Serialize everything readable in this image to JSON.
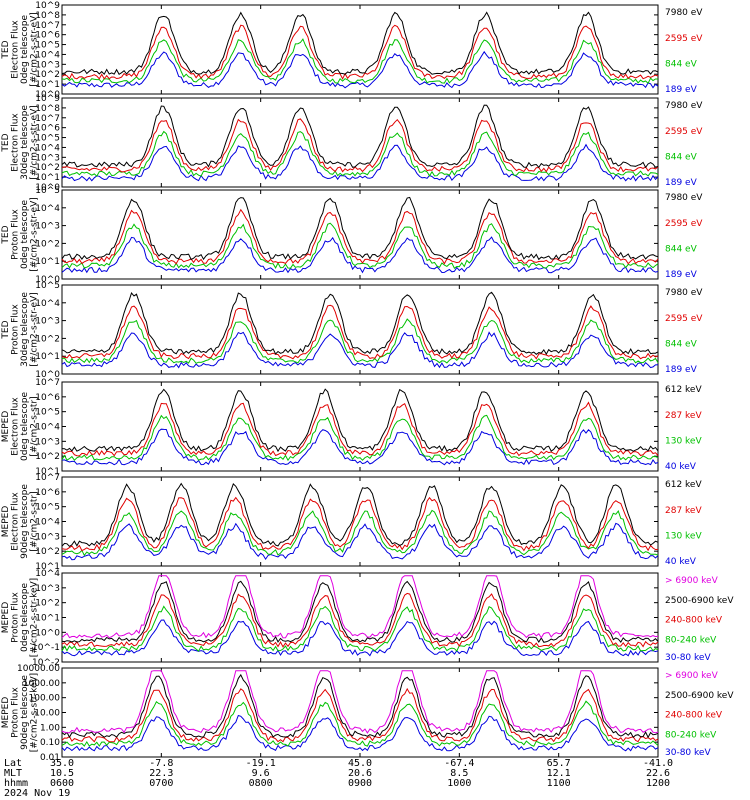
{
  "chart_data": {
    "type": "line",
    "date_label": "2024 Nov 19",
    "x_axis_rows": [
      {
        "label": "Lat",
        "values": [
          "35.0",
          "-7.8",
          "-19.1",
          "45.0",
          "-67.4",
          "65.7",
          "-41.0"
        ]
      },
      {
        "label": "MLT",
        "values": [
          "10.5",
          "22.3",
          "9.6",
          "20.6",
          "8.5",
          "12.1",
          "22.6"
        ]
      },
      {
        "label": "hhmm",
        "values": [
          "0600",
          "0700",
          "0800",
          "0900",
          "1000",
          "1100",
          "1200"
        ]
      }
    ],
    "panels": [
      {
        "id": "ted-electron-0",
        "ylabel": [
          "TED",
          "Electron Flux",
          "0deg telescope",
          "[#/cm2-s-str-eV]"
        ],
        "ylim": [
          1,
          1000000000
        ],
        "scale": "log",
        "yticks": [
          "10^0",
          "10^1",
          "10^2",
          "10^3",
          "10^4",
          "10^5",
          "10^6",
          "10^7",
          "10^8",
          "10^9"
        ],
        "legend": [
          "7980 eV",
          "2595 eV",
          "844 eV",
          "189 eV"
        ],
        "colors": [
          "#000000",
          "#e00000",
          "#00c000",
          "#0000e0"
        ],
        "bursts": [
          0.17,
          0.3,
          0.4,
          0.56,
          0.71,
          0.88
        ]
      },
      {
        "id": "ted-electron-30",
        "ylabel": [
          "TED",
          "Electron Flux",
          "30deg telescope",
          "[#/cm2-s-str-eV]"
        ],
        "ylim": [
          1,
          1000000000
        ],
        "scale": "log",
        "yticks": [
          "10^0",
          "10^1",
          "10^2",
          "10^3",
          "10^4",
          "10^5",
          "10^6",
          "10^7",
          "10^8",
          "10^9"
        ],
        "legend": [
          "7980 eV",
          "2595 eV",
          "844 eV",
          "189 eV"
        ],
        "colors": [
          "#000000",
          "#e00000",
          "#00c000",
          "#0000e0"
        ],
        "bursts": [
          0.17,
          0.3,
          0.4,
          0.56,
          0.71,
          0.88
        ]
      },
      {
        "id": "ted-proton-0",
        "ylabel": [
          "TED",
          "Proton Flux",
          "0deg telescope",
          "[#/cm2-s-str-eV]"
        ],
        "ylim": [
          1,
          100000
        ],
        "scale": "log",
        "yticks": [
          "10^0",
          "10^1",
          "10^2",
          "10^3",
          "10^4",
          "10^5"
        ],
        "legend": [
          "7980 eV",
          "2595 eV",
          "844 eV",
          "189 eV"
        ],
        "colors": [
          "#000000",
          "#e00000",
          "#00c000",
          "#0000e0"
        ],
        "bursts": [
          0.12,
          0.3,
          0.45,
          0.58,
          0.72,
          0.89
        ]
      },
      {
        "id": "ted-proton-30",
        "ylabel": [
          "TED",
          "Proton Flux",
          "30deg telescope",
          "[#/cm2-s-str-eV]"
        ],
        "ylim": [
          1,
          100000
        ],
        "scale": "log",
        "yticks": [
          "10^0",
          "10^1",
          "10^2",
          "10^3",
          "10^4",
          "10^5"
        ],
        "legend": [
          "7980 eV",
          "2595 eV",
          "844 eV",
          "189 eV"
        ],
        "colors": [
          "#000000",
          "#e00000",
          "#00c000",
          "#0000e0"
        ],
        "bursts": [
          0.12,
          0.3,
          0.45,
          0.58,
          0.72,
          0.89
        ]
      },
      {
        "id": "meped-electron-0",
        "ylabel": [
          "MEPED",
          "Electron Flux",
          "0deg telescope",
          "[#/cm2-s-str]"
        ],
        "ylim": [
          10,
          10000000
        ],
        "scale": "log",
        "yticks": [
          "10^1",
          "10^2",
          "10^3",
          "10^4",
          "10^5",
          "10^6",
          "10^7"
        ],
        "legend": [
          "612 keV",
          "287 keV",
          "130 keV",
          "40 keV"
        ],
        "colors": [
          "#000000",
          "#e00000",
          "#00c000",
          "#0000e0"
        ],
        "bursts": [
          0.17,
          0.3,
          0.44,
          0.57,
          0.71,
          0.88
        ]
      },
      {
        "id": "meped-electron-90",
        "ylabel": [
          "MEPED",
          "Electron Flux",
          "90deg telescope",
          "[#/cm2-s-str]"
        ],
        "ylim": [
          10,
          10000000
        ],
        "scale": "log",
        "yticks": [
          "10^1",
          "10^2",
          "10^3",
          "10^4",
          "10^5",
          "10^6",
          "10^7"
        ],
        "legend": [
          "612 keV",
          "287 keV",
          "130 keV",
          "40 keV"
        ],
        "colors": [
          "#000000",
          "#e00000",
          "#00c000",
          "#0000e0"
        ],
        "bursts": [
          0.11,
          0.2,
          0.29,
          0.42,
          0.51,
          0.62,
          0.72,
          0.84,
          0.93
        ]
      },
      {
        "id": "meped-proton-0",
        "ylabel": [
          "MEPED",
          "Proton Flux",
          "0deg telescope",
          "[#/cm2-s-str-keV]"
        ],
        "ylim": [
          0.01,
          10000
        ],
        "scale": "log",
        "yticks": [
          "10^-2",
          "10^-1",
          "10^0",
          "10^1",
          "10^2",
          "10^3",
          "10^4"
        ],
        "legend": [
          "> 6900 keV",
          "2500-6900 keV",
          "240-800 keV",
          "80-240 keV",
          "30-80 keV"
        ],
        "colors": [
          "#e000e0",
          "#000000",
          "#e00000",
          "#00c000",
          "#0000e0"
        ],
        "bursts": [
          0.17,
          0.3,
          0.44,
          0.58,
          0.72,
          0.88
        ]
      },
      {
        "id": "meped-proton-90",
        "ylabel": [
          "MEPED",
          "Proton Flux",
          "90deg telescope",
          "[#/cm2-s-str-keV]"
        ],
        "ylim": [
          0.01,
          10000
        ],
        "scale": "log",
        "yticks": [
          "0.01",
          "0.10",
          "1.00",
          "10.00",
          "100.00",
          "1000.00",
          "10000.00"
        ],
        "legend": [
          "> 6900 keV",
          "2500-6900 keV",
          "240-800 keV",
          "80-240 keV",
          "30-80 keV"
        ],
        "colors": [
          "#e000e0",
          "#000000",
          "#e00000",
          "#00c000",
          "#0000e0"
        ],
        "bursts": [
          0.16,
          0.3,
          0.44,
          0.58,
          0.72,
          0.88
        ]
      }
    ]
  }
}
